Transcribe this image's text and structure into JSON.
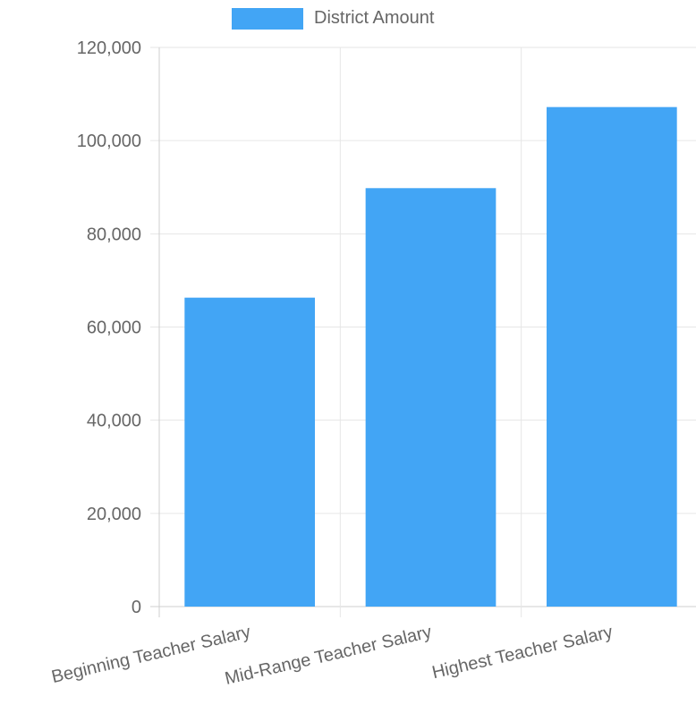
{
  "chart_data": {
    "type": "bar",
    "categories": [
      "Beginning Teacher Salary",
      "Mid-Range Teacher Salary",
      "Highest Teacher Salary"
    ],
    "series": [
      {
        "name": "District Amount",
        "values": [
          66300,
          89800,
          107200
        ],
        "color": "#42a5f5"
      }
    ],
    "ylim": [
      0,
      120000
    ],
    "yticks": [
      "0",
      "20,000",
      "40,000",
      "60,000",
      "80,000",
      "100,000",
      "120,000"
    ],
    "ytick_values": [
      0,
      20000,
      40000,
      60000,
      80000,
      100000,
      120000
    ],
    "grid": true,
    "legend": "top-center",
    "gridline_color": "#e6e6e6",
    "axis_color": "#cfcfcf",
    "label_color": "#666666"
  }
}
